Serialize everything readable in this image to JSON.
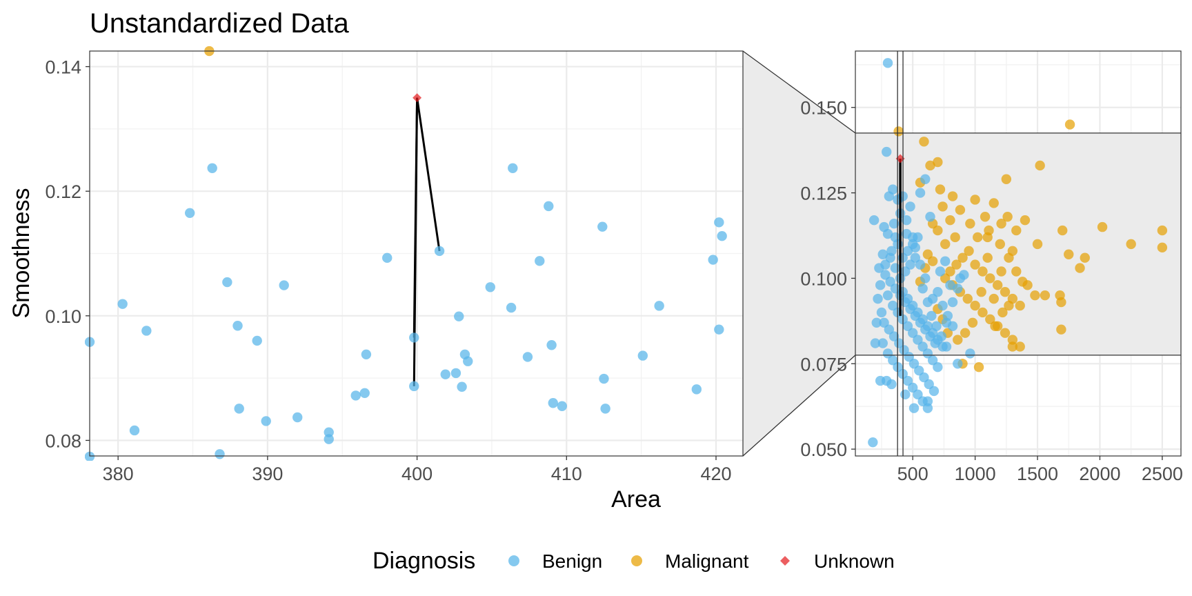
{
  "chart_data": {
    "type": "scatter",
    "title": "Unstandardized Data",
    "xlabel": "Area",
    "ylabel": "Smoothness",
    "legend": {
      "title": "Diagnosis",
      "position": "bottom",
      "entries": [
        {
          "name": "Benign",
          "color": "#56B4E9",
          "shape": "circle"
        },
        {
          "name": "Malignant",
          "color": "#E69F00",
          "shape": "circle"
        },
        {
          "name": "Unknown",
          "color": "#E41A1C",
          "shape": "diamond"
        }
      ]
    },
    "grid": true,
    "main_panel": {
      "xlim": [
        378.1,
        421.8
      ],
      "ylim": [
        0.0775,
        0.1425
      ],
      "x_ticks": [
        380,
        390,
        400,
        410,
        420
      ],
      "y_ticks": [
        0.08,
        0.1,
        0.12,
        0.14
      ],
      "x_tick_labels": [
        "380",
        "390",
        "400",
        "410",
        "420"
      ],
      "y_tick_labels": [
        "0.08",
        "0.10",
        "0.12",
        "0.14"
      ],
      "benign": [
        [
          378.1,
          0.0958
        ],
        [
          380.3,
          0.1019
        ],
        [
          381.1,
          0.0816
        ],
        [
          381.9,
          0.0976
        ],
        [
          384.8,
          0.1165
        ],
        [
          386.3,
          0.1237
        ],
        [
          386.8,
          0.0778
        ],
        [
          387.3,
          0.1054
        ],
        [
          388.0,
          0.0984
        ],
        [
          388.1,
          0.0851
        ],
        [
          389.3,
          0.096
        ],
        [
          389.9,
          0.0831
        ],
        [
          391.1,
          0.1049
        ],
        [
          392.0,
          0.0837
        ],
        [
          394.1,
          0.0813
        ],
        [
          394.1,
          0.0802
        ],
        [
          395.9,
          0.0872
        ],
        [
          396.5,
          0.0876
        ],
        [
          396.6,
          0.0938
        ],
        [
          398.0,
          0.1093
        ],
        [
          399.8,
          0.0965
        ],
        [
          399.8,
          0.0887
        ],
        [
          401.5,
          0.1104
        ],
        [
          401.9,
          0.0906
        ],
        [
          402.6,
          0.0908
        ],
        [
          402.8,
          0.0999
        ],
        [
          403.0,
          0.0886
        ],
        [
          403.2,
          0.0938
        ],
        [
          403.4,
          0.0927
        ],
        [
          404.9,
          0.1046
        ],
        [
          406.3,
          0.1013
        ],
        [
          406.4,
          0.1237
        ],
        [
          407.4,
          0.0934
        ],
        [
          408.2,
          0.1088
        ],
        [
          408.8,
          0.1176
        ],
        [
          409.0,
          0.0953
        ],
        [
          409.1,
          0.086
        ],
        [
          409.7,
          0.0855
        ],
        [
          412.4,
          0.1143
        ],
        [
          412.5,
          0.0899
        ],
        [
          412.6,
          0.0851
        ],
        [
          415.1,
          0.0936
        ],
        [
          416.2,
          0.1016
        ],
        [
          418.7,
          0.0882
        ],
        [
          419.8,
          0.109
        ],
        [
          420.2,
          0.115
        ],
        [
          420.2,
          0.0978
        ],
        [
          420.4,
          0.1128
        ],
        [
          378.1,
          0.0774
        ]
      ],
      "malignant": [
        [
          386.1,
          0.1425
        ]
      ],
      "unknown": [
        [
          400.0,
          0.135
        ]
      ],
      "neighbor_lines_to": [
        [
          399.8,
          0.0887
        ],
        [
          399.8,
          0.0965
        ],
        [
          401.5,
          0.1104
        ]
      ]
    },
    "zoom_panel": {
      "xlim": [
        40,
        2650
      ],
      "ylim": [
        0.048,
        0.1665
      ],
      "x_ticks": [
        500,
        1000,
        1500,
        2000,
        2500
      ],
      "y_ticks": [
        0.05,
        0.075,
        0.1,
        0.125,
        0.15
      ],
      "x_tick_labels": [
        "500",
        "1000",
        "1500",
        "2000",
        "2500"
      ],
      "y_tick_labels": [
        "0.050",
        "0.075",
        "0.100",
        "0.125",
        "0.150"
      ],
      "highlight_box": {
        "xmin": 378.1,
        "xmax": 421.8,
        "ymin": 0.0775,
        "ymax": 0.1425
      },
      "benign": [
        [
          300,
          0.163
        ],
        [
          290,
          0.137
        ],
        [
          340,
          0.126
        ],
        [
          310,
          0.124
        ],
        [
          190,
          0.117
        ],
        [
          270,
          0.115
        ],
        [
          420,
          0.124
        ],
        [
          480,
          0.121
        ],
        [
          560,
          0.125
        ],
        [
          600,
          0.129
        ],
        [
          640,
          0.118
        ],
        [
          450,
          0.113
        ],
        [
          500,
          0.112
        ],
        [
          520,
          0.109
        ],
        [
          380,
          0.11
        ],
        [
          330,
          0.108
        ],
        [
          260,
          0.107
        ],
        [
          230,
          0.103
        ],
        [
          280,
          0.101
        ],
        [
          320,
          0.099
        ],
        [
          360,
          0.097
        ],
        [
          400,
          0.095
        ],
        [
          440,
          0.093
        ],
        [
          480,
          0.091
        ],
        [
          520,
          0.089
        ],
        [
          560,
          0.087
        ],
        [
          600,
          0.085
        ],
        [
          640,
          0.083
        ],
        [
          680,
          0.081
        ],
        [
          300,
          0.095
        ],
        [
          340,
          0.092
        ],
        [
          380,
          0.09
        ],
        [
          420,
          0.088
        ],
        [
          460,
          0.086
        ],
        [
          500,
          0.084
        ],
        [
          540,
          0.082
        ],
        [
          580,
          0.08
        ],
        [
          620,
          0.078
        ],
        [
          660,
          0.076
        ],
        [
          700,
          0.074
        ],
        [
          250,
          0.09
        ],
        [
          270,
          0.087
        ],
        [
          310,
          0.085
        ],
        [
          350,
          0.083
        ],
        [
          390,
          0.081
        ],
        [
          430,
          0.079
        ],
        [
          470,
          0.077
        ],
        [
          510,
          0.075
        ],
        [
          550,
          0.073
        ],
        [
          590,
          0.071
        ],
        [
          630,
          0.069
        ],
        [
          670,
          0.067
        ],
        [
          260,
          0.081
        ],
        [
          300,
          0.078
        ],
        [
          340,
          0.076
        ],
        [
          380,
          0.074
        ],
        [
          420,
          0.072
        ],
        [
          460,
          0.07
        ],
        [
          500,
          0.068
        ],
        [
          540,
          0.066
        ],
        [
          580,
          0.064
        ],
        [
          620,
          0.062
        ],
        [
          290,
          0.07
        ],
        [
          330,
          0.069
        ],
        [
          440,
          0.066
        ],
        [
          510,
          0.062
        ],
        [
          620,
          0.064
        ],
        [
          770,
          0.087
        ],
        [
          820,
          0.093
        ],
        [
          860,
          0.097
        ],
        [
          880,
          0.1
        ],
        [
          910,
          0.101
        ],
        [
          960,
          0.078
        ],
        [
          860,
          0.075
        ],
        [
          720,
          0.102
        ],
        [
          760,
          0.105
        ],
        [
          800,
          0.098
        ],
        [
          700,
          0.096
        ],
        [
          740,
          0.092
        ],
        [
          780,
          0.089
        ],
        [
          820,
          0.086
        ],
        [
          660,
          0.094
        ],
        [
          600,
          0.1
        ],
        [
          560,
          0.104
        ],
        [
          520,
          0.106
        ],
        [
          480,
          0.104
        ],
        [
          440,
          0.102
        ],
        [
          400,
          0.1
        ],
        [
          360,
          0.103
        ],
        [
          320,
          0.106
        ],
        [
          280,
          0.104
        ],
        [
          240,
          0.098
        ],
        [
          220,
          0.094
        ],
        [
          210,
          0.087
        ],
        [
          200,
          0.081
        ],
        [
          180,
          0.052
        ],
        [
          240,
          0.07
        ],
        [
          420,
          0.106
        ],
        [
          460,
          0.108
        ],
        [
          500,
          0.11
        ],
        [
          540,
          0.112
        ],
        [
          580,
          0.097
        ],
        [
          620,
          0.093
        ],
        [
          650,
          0.089
        ],
        [
          690,
          0.086
        ],
        [
          730,
          0.083
        ],
        [
          770,
          0.08
        ],
        [
          300,
          0.113
        ],
        [
          350,
          0.116
        ],
        [
          400,
          0.119
        ],
        [
          450,
          0.117
        ],
        [
          380,
          0.123
        ],
        [
          360,
          0.112
        ],
        [
          420,
          0.096
        ],
        [
          460,
          0.094
        ],
        [
          500,
          0.092
        ],
        [
          540,
          0.09
        ],
        [
          580,
          0.088
        ],
        [
          620,
          0.086
        ],
        [
          660,
          0.084
        ],
        [
          700,
          0.082
        ],
        [
          740,
          0.08
        ]
      ],
      "malignant": [
        [
          1760,
          0.145
        ],
        [
          386,
          0.143
        ],
        [
          590,
          0.14
        ],
        [
          700,
          0.134
        ],
        [
          640,
          0.133
        ],
        [
          1520,
          0.133
        ],
        [
          1250,
          0.129
        ],
        [
          560,
          0.128
        ],
        [
          720,
          0.126
        ],
        [
          820,
          0.124
        ],
        [
          1000,
          0.123
        ],
        [
          1150,
          0.122
        ],
        [
          740,
          0.121
        ],
        [
          880,
          0.12
        ],
        [
          1260,
          0.118
        ],
        [
          1080,
          0.118
        ],
        [
          1400,
          0.117
        ],
        [
          1700,
          0.114
        ],
        [
          2020,
          0.115
        ],
        [
          2500,
          0.114
        ],
        [
          1500,
          0.11
        ],
        [
          2250,
          0.11
        ],
        [
          2500,
          0.109
        ],
        [
          1750,
          0.107
        ],
        [
          1880,
          0.106
        ],
        [
          1840,
          0.103
        ],
        [
          1100,
          0.112
        ],
        [
          1200,
          0.11
        ],
        [
          1300,
          0.108
        ],
        [
          950,
          0.108
        ],
        [
          900,
          0.106
        ],
        [
          850,
          0.104
        ],
        [
          800,
          0.102
        ],
        [
          760,
          0.1
        ],
        [
          820,
          0.098
        ],
        [
          880,
          0.096
        ],
        [
          940,
          0.094
        ],
        [
          1000,
          0.092
        ],
        [
          1060,
          0.09
        ],
        [
          1120,
          0.088
        ],
        [
          1180,
          0.086
        ],
        [
          1240,
          0.084
        ],
        [
          1300,
          0.082
        ],
        [
          1360,
          0.08
        ],
        [
          1000,
          0.104
        ],
        [
          1060,
          0.102
        ],
        [
          1120,
          0.1
        ],
        [
          1180,
          0.098
        ],
        [
          1240,
          0.096
        ],
        [
          1300,
          0.094
        ],
        [
          1360,
          0.092
        ],
        [
          1420,
          0.098
        ],
        [
          1480,
          0.095
        ],
        [
          1560,
          0.095
        ],
        [
          1680,
          0.095
        ],
        [
          1690,
          0.093
        ],
        [
          1690,
          0.085
        ],
        [
          1300,
          0.08
        ],
        [
          1030,
          0.074
        ],
        [
          900,
          0.075
        ],
        [
          1160,
          0.086
        ],
        [
          1220,
          0.09
        ],
        [
          1270,
          0.092
        ],
        [
          1330,
          0.102
        ],
        [
          1380,
          0.099
        ],
        [
          1100,
          0.106
        ],
        [
          1050,
          0.096
        ],
        [
          980,
          0.087
        ],
        [
          920,
          0.084
        ],
        [
          860,
          0.082
        ],
        [
          780,
          0.084
        ],
        [
          740,
          0.088
        ],
        [
          700,
          0.091
        ],
        [
          660,
          0.105
        ],
        [
          620,
          0.107
        ],
        [
          600,
          0.103
        ],
        [
          560,
          0.099
        ],
        [
          1150,
          0.094
        ],
        [
          1210,
          0.102
        ],
        [
          1270,
          0.106
        ],
        [
          1330,
          0.114
        ],
        [
          1210,
          0.116
        ],
        [
          1110,
          0.114
        ],
        [
          1020,
          0.112
        ],
        [
          960,
          0.116
        ],
        [
          840,
          0.112
        ],
        [
          760,
          0.11
        ],
        [
          700,
          0.114
        ],
        [
          660,
          0.116
        ],
        [
          800,
          0.117
        ]
      ],
      "unknown": [
        [
          400,
          0.135
        ]
      ],
      "neighbor_segment": [
        [
          400,
          0.089
        ],
        [
          400,
          0.135
        ]
      ]
    }
  }
}
